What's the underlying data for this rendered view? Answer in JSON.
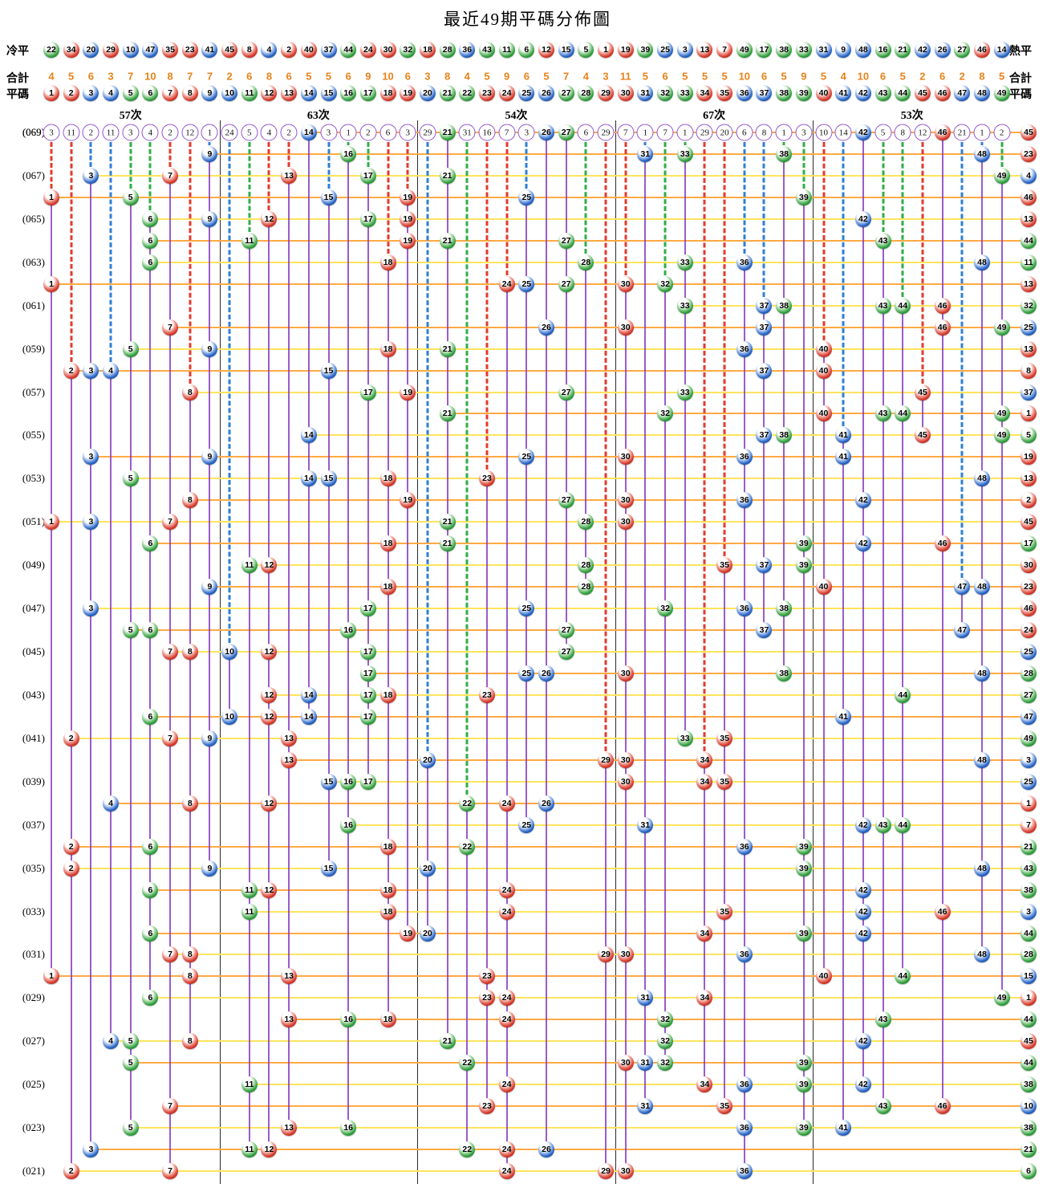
{
  "title": "最近49期平碼分佈圖",
  "header": {
    "cold_label": "冷平",
    "hot_label": "熱平",
    "total_label_left": "合計",
    "total_label_right": "合計",
    "number_label_left": "平碼",
    "number_label_right": "平碼",
    "cold_numbers": [
      22,
      34,
      20,
      29,
      10,
      47,
      35,
      23,
      41,
      45,
      8,
      4,
      2,
      40,
      37,
      44,
      24,
      30,
      32,
      18,
      28,
      36,
      43,
      11,
      6,
      12,
      15,
      5,
      1,
      19,
      39,
      25,
      3,
      13,
      7,
      49,
      17,
      38,
      33,
      31,
      9,
      48,
      16,
      21,
      42,
      26,
      27,
      46,
      14
    ],
    "totals": [
      4,
      5,
      6,
      3,
      7,
      10,
      8,
      7,
      7,
      2,
      6,
      8,
      6,
      5,
      5,
      6,
      9,
      10,
      6,
      3,
      8,
      4,
      5,
      9,
      6,
      5,
      7,
      4,
      3,
      11,
      5,
      6,
      5,
      5,
      5,
      10,
      6,
      5,
      9,
      5,
      4,
      10,
      6,
      5,
      2,
      6,
      2,
      8,
      5
    ],
    "numbers": [
      1,
      2,
      3,
      4,
      5,
      6,
      7,
      8,
      9,
      10,
      11,
      12,
      13,
      14,
      15,
      16,
      17,
      18,
      19,
      20,
      21,
      22,
      23,
      24,
      25,
      26,
      27,
      28,
      29,
      30,
      31,
      32,
      33,
      34,
      35,
      36,
      37,
      38,
      39,
      40,
      41,
      42,
      43,
      44,
      45,
      46,
      47,
      48,
      49
    ],
    "sections": [
      "57次",
      "63次",
      "54次",
      "67次",
      "53次"
    ]
  },
  "chart_data": {
    "type": "scatter",
    "description": "Each row is one lottery period (069 newest at top, 021 oldest at bottom). A ball numbered N is plotted in column N. The right-hand ball column is that period's extra number. The top (069) row shows, per column, the number of periods since that number last appeared (a ball means it appeared in period 069).",
    "gap_row": {
      "label": "(069)",
      "gaps": [
        3,
        11,
        2,
        11,
        3,
        4,
        2,
        12,
        1,
        24,
        5,
        4,
        2,
        0,
        3,
        1,
        2,
        6,
        3,
        29,
        0,
        31,
        16,
        7,
        3,
        0,
        0,
        6,
        29,
        7,
        1,
        7,
        1,
        29,
        20,
        6,
        8,
        1,
        3,
        10,
        14,
        0,
        5,
        8,
        12,
        0,
        21,
        1,
        2
      ]
    },
    "periods": [
      {
        "p": 69,
        "label": "(069)",
        "balls": [
          14,
          21,
          26,
          27,
          42,
          46
        ],
        "special": 45
      },
      {
        "p": 68,
        "label": "",
        "balls": [
          9,
          16,
          31,
          33,
          38,
          48
        ],
        "special": 23
      },
      {
        "p": 67,
        "label": "(067)",
        "balls": [
          3,
          7,
          13,
          17,
          21,
          49
        ],
        "special": 4
      },
      {
        "p": 66,
        "label": "",
        "balls": [
          1,
          5,
          15,
          19,
          25,
          39
        ],
        "special": 46
      },
      {
        "p": 65,
        "label": "(065)",
        "balls": [
          6,
          9,
          12,
          17,
          19,
          42
        ],
        "special": 13
      },
      {
        "p": 64,
        "label": "",
        "balls": [
          6,
          11,
          19,
          21,
          27,
          43
        ],
        "special": 44
      },
      {
        "p": 63,
        "label": "(063)",
        "balls": [
          6,
          18,
          28,
          33,
          36,
          48
        ],
        "special": 11
      },
      {
        "p": 62,
        "label": "",
        "balls": [
          1,
          24,
          25,
          27,
          30,
          32
        ],
        "special": 13
      },
      {
        "p": 61,
        "label": "(061)",
        "balls": [
          33,
          37,
          38,
          43,
          44,
          46
        ],
        "special": 32
      },
      {
        "p": 60,
        "label": "",
        "balls": [
          7,
          26,
          30,
          37,
          46,
          49
        ],
        "special": 25
      },
      {
        "p": 59,
        "label": "(059)",
        "balls": [
          5,
          9,
          18,
          21,
          36,
          40
        ],
        "special": 13
      },
      {
        "p": 58,
        "label": "",
        "balls": [
          2,
          3,
          4,
          15,
          37,
          40
        ],
        "special": 8
      },
      {
        "p": 57,
        "label": "(057)",
        "balls": [
          8,
          17,
          19,
          27,
          33,
          45
        ],
        "special": 37
      },
      {
        "p": 56,
        "label": "",
        "balls": [
          21,
          32,
          40,
          43,
          44,
          49
        ],
        "special": 1
      },
      {
        "p": 55,
        "label": "(055)",
        "balls": [
          14,
          37,
          38,
          41,
          45,
          49
        ],
        "special": 5
      },
      {
        "p": 54,
        "label": "",
        "balls": [
          3,
          9,
          25,
          30,
          36,
          41
        ],
        "special": 19
      },
      {
        "p": 53,
        "label": "(053)",
        "balls": [
          5,
          14,
          15,
          18,
          23,
          48
        ],
        "special": 13
      },
      {
        "p": 52,
        "label": "",
        "balls": [
          8,
          19,
          27,
          30,
          36,
          42
        ],
        "special": 2
      },
      {
        "p": 51,
        "label": "(051)",
        "balls": [
          1,
          3,
          7,
          21,
          28,
          30
        ],
        "special": 45
      },
      {
        "p": 50,
        "label": "",
        "balls": [
          6,
          18,
          21,
          39,
          42,
          46
        ],
        "special": 17
      },
      {
        "p": 49,
        "label": "(049)",
        "balls": [
          11,
          12,
          28,
          35,
          37,
          39
        ],
        "special": 30
      },
      {
        "p": 48,
        "label": "",
        "balls": [
          9,
          18,
          28,
          40,
          47,
          48
        ],
        "special": 23
      },
      {
        "p": 47,
        "label": "(047)",
        "balls": [
          3,
          17,
          25,
          32,
          36,
          38
        ],
        "special": 46
      },
      {
        "p": 46,
        "label": "",
        "balls": [
          5,
          6,
          16,
          27,
          37,
          47
        ],
        "special": 24
      },
      {
        "p": 45,
        "label": "(045)",
        "balls": [
          7,
          8,
          10,
          12,
          17,
          27
        ],
        "special": 25
      },
      {
        "p": 44,
        "label": "",
        "balls": [
          17,
          25,
          26,
          30,
          38,
          48
        ],
        "special": 28
      },
      {
        "p": 43,
        "label": "(043)",
        "balls": [
          12,
          14,
          17,
          18,
          23,
          44
        ],
        "special": 27
      },
      {
        "p": 42,
        "label": "",
        "balls": [
          6,
          10,
          12,
          14,
          17,
          41
        ],
        "special": 47
      },
      {
        "p": 41,
        "label": "(041)",
        "balls": [
          2,
          7,
          9,
          13,
          33,
          35
        ],
        "special": 49
      },
      {
        "p": 40,
        "label": "",
        "balls": [
          13,
          20,
          29,
          30,
          34,
          48
        ],
        "special": 3
      },
      {
        "p": 39,
        "label": "(039)",
        "balls": [
          15,
          16,
          17,
          30,
          34,
          35
        ],
        "special": 25
      },
      {
        "p": 38,
        "label": "",
        "balls": [
          4,
          8,
          12,
          22,
          24,
          26
        ],
        "special": 1
      },
      {
        "p": 37,
        "label": "(037)",
        "balls": [
          16,
          25,
          31,
          42,
          43,
          44
        ],
        "special": 7
      },
      {
        "p": 36,
        "label": "",
        "balls": [
          2,
          6,
          18,
          22,
          36,
          39
        ],
        "special": 21
      },
      {
        "p": 35,
        "label": "(035)",
        "balls": [
          2,
          9,
          15,
          20,
          39,
          48
        ],
        "special": 43
      },
      {
        "p": 34,
        "label": "",
        "balls": [
          6,
          11,
          12,
          18,
          24,
          42
        ],
        "special": 38
      },
      {
        "p": 33,
        "label": "(033)",
        "balls": [
          11,
          18,
          24,
          35,
          42,
          46
        ],
        "special": 3
      },
      {
        "p": 32,
        "label": "",
        "balls": [
          6,
          19,
          20,
          34,
          39,
          42
        ],
        "special": 44
      },
      {
        "p": 31,
        "label": "(031)",
        "balls": [
          7,
          8,
          29,
          30,
          36,
          48
        ],
        "special": 28
      },
      {
        "p": 30,
        "label": "",
        "balls": [
          1,
          8,
          13,
          23,
          40,
          44
        ],
        "special": 15
      },
      {
        "p": 29,
        "label": "(029)",
        "balls": [
          6,
          23,
          24,
          31,
          34,
          49
        ],
        "special": 1
      },
      {
        "p": 28,
        "label": "",
        "balls": [
          13,
          16,
          18,
          24,
          32,
          43
        ],
        "special": 44
      },
      {
        "p": 27,
        "label": "(027)",
        "balls": [
          4,
          5,
          8,
          21,
          32,
          42
        ],
        "special": 45
      },
      {
        "p": 26,
        "label": "",
        "balls": [
          5,
          22,
          30,
          31,
          32,
          39
        ],
        "special": 44
      },
      {
        "p": 25,
        "label": "(025)",
        "balls": [
          11,
          24,
          34,
          36,
          39,
          42
        ],
        "special": 38
      },
      {
        "p": 24,
        "label": "",
        "balls": [
          7,
          23,
          31,
          35,
          43,
          46
        ],
        "special": 10
      },
      {
        "p": 23,
        "label": "(023)",
        "balls": [
          5,
          13,
          16,
          36,
          39,
          41
        ],
        "special": 38
      },
      {
        "p": 22,
        "label": "",
        "balls": [
          3,
          11,
          12,
          22,
          24,
          26
        ],
        "special": 21
      },
      {
        "p": 21,
        "label": "(021)",
        "balls": [
          2,
          7,
          24,
          29,
          30,
          36
        ],
        "special": 6
      }
    ]
  },
  "colors": {
    "ball_red": "#d5392b",
    "ball_blue": "#2663c4",
    "ball_green": "#2f9e3c",
    "dash_red": "#e23b2e",
    "dash_blue": "#2f7fd6",
    "dash_green": "#2fae46",
    "line_yellow": "#ffe45e",
    "line_orange": "#ffaa45",
    "trend_purple": "#8a3fc0",
    "gap_circle_border": "#9155cc",
    "total_orange": "#e8821a",
    "red_numbers": [
      1,
      2,
      7,
      8,
      12,
      13,
      18,
      19,
      23,
      24,
      29,
      30,
      34,
      35,
      40,
      45,
      46
    ],
    "blue_numbers": [
      3,
      4,
      9,
      10,
      14,
      15,
      20,
      25,
      26,
      31,
      36,
      37,
      41,
      42,
      47,
      48
    ],
    "green_numbers": [
      5,
      6,
      11,
      16,
      17,
      21,
      22,
      27,
      28,
      32,
      33,
      38,
      39,
      43,
      44,
      49
    ]
  }
}
